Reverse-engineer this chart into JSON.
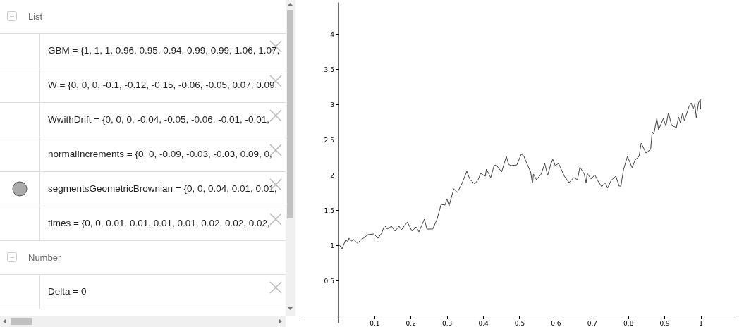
{
  "chart_data": [
    {
      "type": "other",
      "annotations": [
        "List",
        "GBM = {1, 1, 1, 0.96, 0.95, 0.94, 0.99, 0.99, 1.06, 1.07,",
        "W = {0, 0, 0, -0.1, -0.12, -0.15, -0.06, -0.05, 0.07, 0.09,",
        "WwithDrift = {0, 0, 0, -0.04, -0.05, -0.06, -0.01, -0.01,",
        "normalIncrements = {0, 0, -0.09, -0.03, -0.03, 0.09, 0,",
        "segmentsGeometricBrownian = {0, 0, 0.04, 0.01, 0.01,",
        "times = {0, 0, 0.01, 0.01, 0.01, 0.01, 0.02, 0.02, 0.02,",
        "Number",
        "Delta = 0"
      ]
    },
    {
      "type": "line",
      "color": "#444444",
      "grid": false,
      "legend": false,
      "marker": "none",
      "line_style": "solid",
      "xlim": [
        -0.1,
        1.1
      ],
      "ylim": [
        -0.1,
        4.45
      ],
      "xticks": [
        0.1,
        0.2,
        0.3,
        0.4,
        0.5,
        0.6,
        0.7,
        0.8,
        0.9,
        1
      ],
      "yticks": [
        0.5,
        1,
        1.5,
        2,
        2.5,
        3,
        3.5,
        4
      ],
      "x": [
        0,
        0.004,
        0.011,
        0.021,
        0.027,
        0.03,
        0.037,
        0.043,
        0.053,
        0.062,
        0.075,
        0.082,
        0.098,
        0.11,
        0.12,
        0.128,
        0.136,
        0.147,
        0.157,
        0.168,
        0.175,
        0.191,
        0.204,
        0.215,
        0.223,
        0.238,
        0.245,
        0.261,
        0.273,
        0.284,
        0.295,
        0.3,
        0.306,
        0.319,
        0.329,
        0.342,
        0.355,
        0.364,
        0.377,
        0.387,
        0.393,
        0.406,
        0.409,
        0.421,
        0.43,
        0.436,
        0.451,
        0.464,
        0.47,
        0.476,
        0.493,
        0.505,
        0.512,
        0.518,
        0.531,
        0.536,
        0.539,
        0.547,
        0.56,
        0.57,
        0.578,
        0.586,
        0.592,
        0.599,
        0.608,
        0.624,
        0.637,
        0.65,
        0.66,
        0.667,
        0.679,
        0.684,
        0.687,
        0.698,
        0.708,
        0.717,
        0.727,
        0.737,
        0.743,
        0.753,
        0.766,
        0.775,
        0.78,
        0.787,
        0.798,
        0.811,
        0.819,
        0.83,
        0.836,
        0.849,
        0.862,
        0.866,
        0.871,
        0.879,
        0.884,
        0.897,
        0.904,
        0.911,
        0.92,
        0.933,
        0.939,
        0.944,
        0.95,
        0.955,
        0.968,
        0.974,
        0.979,
        0.984,
        0.988,
        0.994,
        0.999,
        1
      ],
      "values": [
        1.01,
        1.0,
        0.95,
        1.08,
        1.05,
        1.1,
        1.06,
        1.08,
        1.03,
        1.07,
        1.12,
        1.15,
        1.16,
        1.1,
        1.17,
        1.28,
        1.23,
        1.27,
        1.2,
        1.27,
        1.22,
        1.33,
        1.2,
        1.26,
        1.19,
        1.37,
        1.23,
        1.23,
        1.37,
        1.58,
        1.57,
        1.66,
        1.56,
        1.8,
        1.75,
        1.88,
        2.05,
        1.93,
        1.87,
        1.94,
        2.02,
        1.98,
        2.08,
        1.96,
        2.13,
        2.14,
        2.04,
        2.26,
        2.15,
        2.13,
        2.14,
        2.29,
        2.27,
        2.19,
        2.04,
        1.88,
        2.01,
        1.93,
        2.01,
        2.16,
        1.99,
        2.14,
        2.22,
        2.13,
        2.16,
        1.98,
        1.89,
        1.96,
        1.93,
        2.11,
        2.01,
        1.88,
        2.02,
        1.94,
        2.0,
        1.91,
        1.83,
        1.89,
        1.81,
        1.92,
        1.98,
        1.84,
        1.84,
        2.07,
        2.26,
        2.1,
        2.21,
        2.26,
        2.45,
        2.31,
        2.36,
        2.6,
        2.58,
        2.8,
        2.64,
        2.8,
        2.69,
        2.88,
        2.7,
        2.67,
        2.82,
        2.74,
        2.88,
        2.77,
        2.97,
        3.02,
        2.93,
        3.0,
        2.81,
        3.02,
        3.07,
        2.93
      ]
    }
  ]
}
